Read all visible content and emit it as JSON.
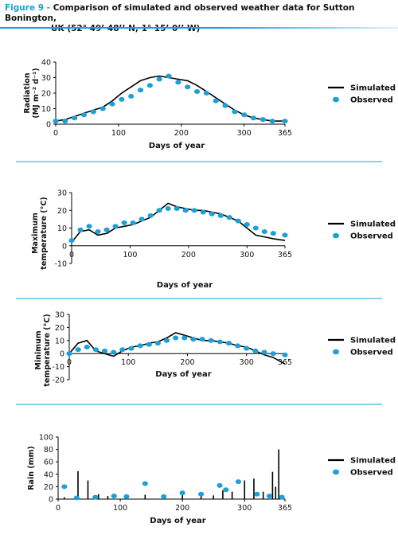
{
  "figure": {
    "label": "Figure 9 -",
    "title_line1": "Comparison of simulated and observed weather data for Sutton Bonington,",
    "title_line2": "UK (52° 49’ 48’’ N,  1° 15’ 0’’ W)"
  },
  "colors": {
    "accent": "#1ba0d8",
    "simulated": "#000000",
    "observed": "#1ba0d8",
    "rule": "#1ba0d8"
  },
  "chart_data": [
    {
      "type": "line",
      "ylabel": "Radiation (MJ m⁻² d⁻¹)",
      "xlabel": "Days of year",
      "xticks": [
        "0",
        "100",
        "200",
        "300",
        "365"
      ],
      "yticks": [
        "0",
        "10",
        "20",
        "30",
        "40"
      ],
      "xlim": [
        0,
        365
      ],
      "ylim": [
        0,
        40
      ],
      "legend": [
        "Simulated",
        "Observed"
      ],
      "series": [
        {
          "name": "Simulated",
          "style": "line",
          "color": "#000000",
          "x": [
            0,
            15,
            30,
            45,
            60,
            75,
            90,
            105,
            120,
            135,
            150,
            165,
            180,
            195,
            210,
            225,
            240,
            255,
            270,
            285,
            300,
            315,
            330,
            345,
            365
          ],
          "y": [
            2,
            3,
            5,
            7,
            9,
            11,
            15,
            20,
            24,
            28,
            30,
            31,
            30,
            29,
            28,
            25,
            21,
            17,
            13,
            9,
            6,
            4,
            3,
            2,
            2
          ]
        },
        {
          "name": "Observed",
          "style": "scatter",
          "color": "#1ba0d8",
          "x": [
            0,
            15,
            30,
            45,
            60,
            75,
            90,
            105,
            120,
            135,
            150,
            165,
            180,
            195,
            210,
            225,
            240,
            255,
            270,
            285,
            300,
            315,
            330,
            345,
            365
          ],
          "y": [
            2,
            2,
            4,
            6,
            8,
            10,
            13,
            16,
            18,
            22,
            25,
            29,
            31,
            27,
            24,
            21,
            20,
            15,
            12,
            8,
            6,
            4,
            3,
            2,
            2
          ]
        }
      ]
    },
    {
      "type": "line",
      "ylabel": "Maximum temperature (°C)",
      "xlabel": "Days of year",
      "xticks": [
        "0",
        "100",
        "200",
        "300",
        "365"
      ],
      "yticks": [
        "-10",
        "0",
        "10",
        "20",
        "30"
      ],
      "xlim": [
        0,
        365
      ],
      "ylim": [
        -10,
        30
      ],
      "legend": [
        "Simulated",
        "Observed"
      ],
      "series": [
        {
          "name": "Simulated",
          "style": "line",
          "color": "#000000",
          "x": [
            0,
            15,
            30,
            45,
            60,
            75,
            90,
            105,
            120,
            135,
            150,
            165,
            180,
            195,
            210,
            225,
            240,
            255,
            270,
            285,
            300,
            315,
            330,
            345,
            365
          ],
          "y": [
            2,
            8,
            9,
            6,
            7,
            10,
            11,
            12,
            14,
            16,
            20,
            24,
            22,
            21,
            20,
            20,
            19,
            18,
            16,
            14,
            10,
            6,
            5,
            4,
            3
          ]
        },
        {
          "name": "Observed",
          "style": "scatter",
          "color": "#1ba0d8",
          "x": [
            0,
            15,
            30,
            45,
            60,
            75,
            90,
            105,
            120,
            135,
            150,
            165,
            180,
            195,
            210,
            225,
            240,
            255,
            270,
            285,
            300,
            315,
            330,
            345,
            365
          ],
          "y": [
            3,
            9,
            11,
            8,
            9,
            11,
            13,
            13,
            15,
            17,
            20,
            21,
            21,
            20,
            20,
            19,
            18,
            17,
            16,
            14,
            12,
            10,
            8,
            7,
            6
          ]
        }
      ]
    },
    {
      "type": "line",
      "ylabel": "Minimum temperature (°C)",
      "xlabel": "Days of year",
      "xticks": [
        "0",
        "100",
        "200",
        "300",
        "365"
      ],
      "yticks": [
        "-20",
        "-10",
        "0",
        "10",
        "20",
        "30"
      ],
      "xlim": [
        0,
        365
      ],
      "ylim": [
        -20,
        30
      ],
      "legend": [
        "Simulated",
        "Observed"
      ],
      "series": [
        {
          "name": "Simulated",
          "style": "line",
          "color": "#000000",
          "x": [
            0,
            15,
            30,
            45,
            60,
            75,
            90,
            105,
            120,
            135,
            150,
            165,
            180,
            195,
            210,
            225,
            240,
            255,
            270,
            285,
            300,
            315,
            330,
            345,
            365
          ],
          "y": [
            0,
            8,
            10,
            2,
            0,
            -2,
            2,
            5,
            6,
            8,
            9,
            12,
            16,
            14,
            12,
            10,
            10,
            9,
            8,
            6,
            5,
            2,
            -1,
            -3,
            -8
          ]
        },
        {
          "name": "Observed",
          "style": "scatter",
          "color": "#1ba0d8",
          "x": [
            0,
            15,
            30,
            45,
            60,
            75,
            90,
            105,
            120,
            135,
            150,
            165,
            180,
            195,
            210,
            225,
            240,
            255,
            270,
            285,
            300,
            315,
            330,
            345,
            365
          ],
          "y": [
            0,
            3,
            5,
            3,
            2,
            1,
            3,
            4,
            6,
            7,
            8,
            10,
            12,
            12,
            11,
            11,
            10,
            9,
            8,
            6,
            4,
            2,
            1,
            0,
            -1
          ]
        }
      ]
    },
    {
      "type": "bar",
      "ylabel": "Rain (mm)",
      "xlabel": "Days of year",
      "xticks": [
        "0",
        "100",
        "200",
        "300",
        "365"
      ],
      "yticks": [
        "0",
        "20",
        "40",
        "60",
        "80",
        "100"
      ],
      "xlim": [
        0,
        365
      ],
      "ylim": [
        0,
        100
      ],
      "legend": [
        "Simulated",
        "Observed"
      ],
      "series": [
        {
          "name": "Simulated",
          "style": "spike",
          "color": "#000000",
          "x": [
            10,
            32,
            48,
            65,
            80,
            110,
            140,
            170,
            200,
            230,
            250,
            265,
            280,
            300,
            315,
            330,
            345,
            350,
            355
          ],
          "y": [
            3,
            45,
            30,
            8,
            5,
            6,
            7,
            5,
            8,
            10,
            6,
            14,
            12,
            30,
            33,
            12,
            44,
            20,
            80
          ]
        },
        {
          "name": "Observed",
          "style": "scatter",
          "color": "#1ba0d8",
          "x": [
            10,
            30,
            60,
            90,
            110,
            140,
            170,
            200,
            230,
            260,
            270,
            290,
            320,
            340,
            360
          ],
          "y": [
            20,
            2,
            3,
            5,
            4,
            25,
            4,
            10,
            8,
            22,
            15,
            28,
            8,
            5,
            3
          ]
        }
      ]
    }
  ]
}
